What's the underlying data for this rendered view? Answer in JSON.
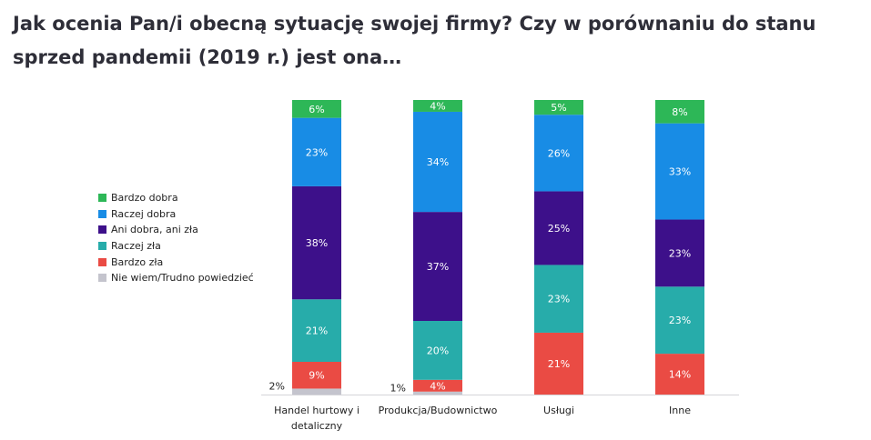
{
  "title": "Jak ocenia Pan/i obecną sytuację swojej firmy? Czy w porównaniu do stanu sprzed pandemii (2019 r.) jest ona…",
  "chart_data": {
    "type": "bar",
    "stacked": true,
    "title": "Jak ocenia Pan/i obecną sytuację swojej firmy? Czy w porównaniu do stanu sprzed pandemii (2019 r.) jest ona…",
    "categories": [
      "Handel hurtowy i detaliczny",
      "Produkcja/Budownictwo",
      "Usługi",
      "Inne"
    ],
    "category_lines": [
      [
        "Handel hurtowy i",
        "detaliczny"
      ],
      [
        "Produkcja/Budownictwo"
      ],
      [
        "Usługi"
      ],
      [
        "Inne"
      ]
    ],
    "legend_position": "left",
    "series": [
      {
        "name": "Bardzo dobra",
        "color": "#2db757",
        "values": [
          6,
          4,
          5,
          8
        ]
      },
      {
        "name": "Raczej dobra",
        "color": "#188ce5",
        "values": [
          23,
          34,
          26,
          33
        ]
      },
      {
        "name": "Ani dobra, ani zła",
        "color": "#3d108a",
        "values": [
          38,
          37,
          25,
          23
        ]
      },
      {
        "name": "Raczej zła",
        "color": "#27acaa",
        "values": [
          21,
          20,
          23,
          23
        ]
      },
      {
        "name": "Bardzo zła",
        "color": "#ea4b44",
        "values": [
          9,
          4,
          21,
          14
        ]
      },
      {
        "name": "Nie wiem/Trudno powiedzieć",
        "color": "#c4c4cd",
        "values": [
          2,
          1,
          0,
          0
        ]
      }
    ],
    "value_suffix": "%",
    "ylim": [
      0,
      100
    ]
  }
}
